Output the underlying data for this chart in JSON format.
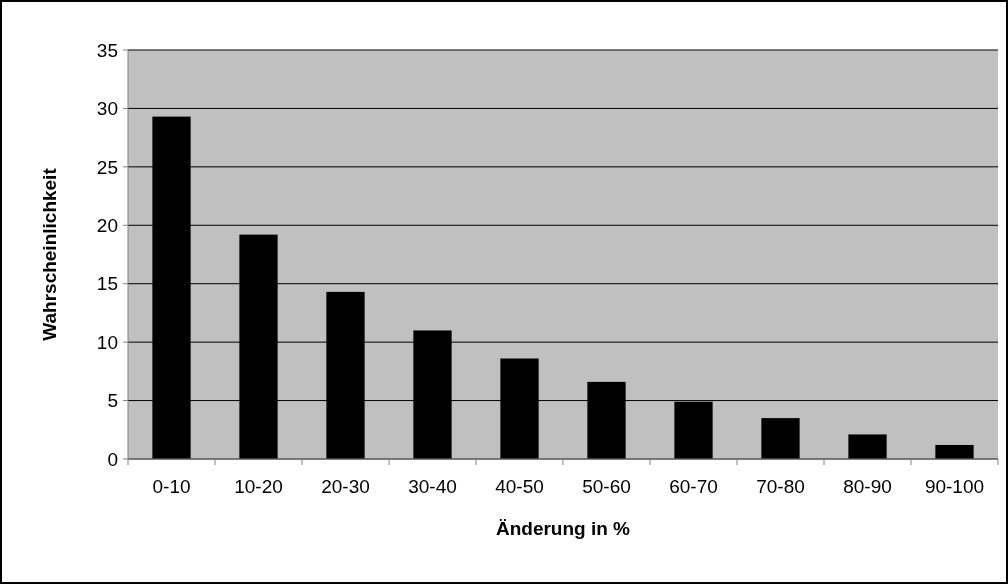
{
  "chart_data": {
    "type": "bar",
    "xlabel": "Änderung in %",
    "ylabel": "Wahrscheinlichkeit",
    "categories": [
      "0-10",
      "10-20",
      "20-30",
      "30-40",
      "40-50",
      "50-60",
      "60-70",
      "70-80",
      "80-90",
      "90-100"
    ],
    "values": [
      29.3,
      19.2,
      14.3,
      11.0,
      8.6,
      6.6,
      4.9,
      3.5,
      2.1,
      1.2
    ],
    "color": "#000000",
    "ylim": [
      0,
      35
    ],
    "yticks": [
      0,
      5,
      10,
      15,
      20,
      25,
      30,
      35
    ],
    "grid": "y"
  }
}
